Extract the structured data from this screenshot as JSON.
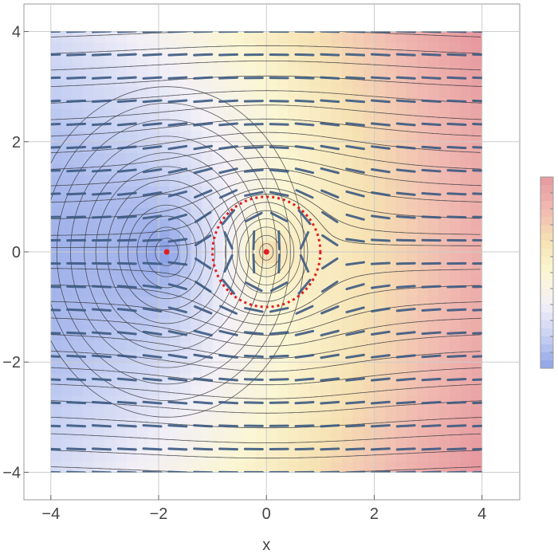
{
  "chart_data": {
    "type": "heatmap",
    "title": "",
    "xlabel": "x",
    "ylabel": "",
    "xlim": [
      -4.5,
      4.7
    ],
    "ylim": [
      -4.5,
      4.5
    ],
    "grid": true,
    "x_ticks": [
      -4,
      -2,
      0,
      2,
      4
    ],
    "y_ticks": [
      -4,
      -2,
      0,
      2,
      4
    ],
    "x_tick_labels": [
      "−4",
      "−2",
      "0",
      "2",
      "4"
    ],
    "y_tick_labels": [
      "−4",
      "−2",
      "0",
      "2",
      "4"
    ],
    "field_domain": {
      "x": [
        -4,
        4
      ],
      "y": [
        -4,
        4
      ]
    },
    "stream_flow": "uniform flow in +x direction, deflected around a circular body centred at origin",
    "critical_points": [
      {
        "x": -1.85,
        "y": 0.0,
        "color": "#e02020"
      },
      {
        "x": 0.0,
        "y": 0.0,
        "color": "#e02020"
      }
    ],
    "circle_boundary": {
      "center": [
        0,
        0
      ],
      "radius": 1.0,
      "color": "#e02020",
      "style": "dotted"
    },
    "colorbar": {
      "placement": "right",
      "colors": [
        "#8ea3e6",
        "#c7d1f3",
        "#f3f0f7",
        "#fbf6d3",
        "#f6e2b3",
        "#f0b9b1",
        "#e6999f"
      ]
    },
    "colors": {
      "arrows": "#3c5a82",
      "streamlines": "#33343a",
      "grid": "#cccccc",
      "frame": "#999999"
    }
  }
}
